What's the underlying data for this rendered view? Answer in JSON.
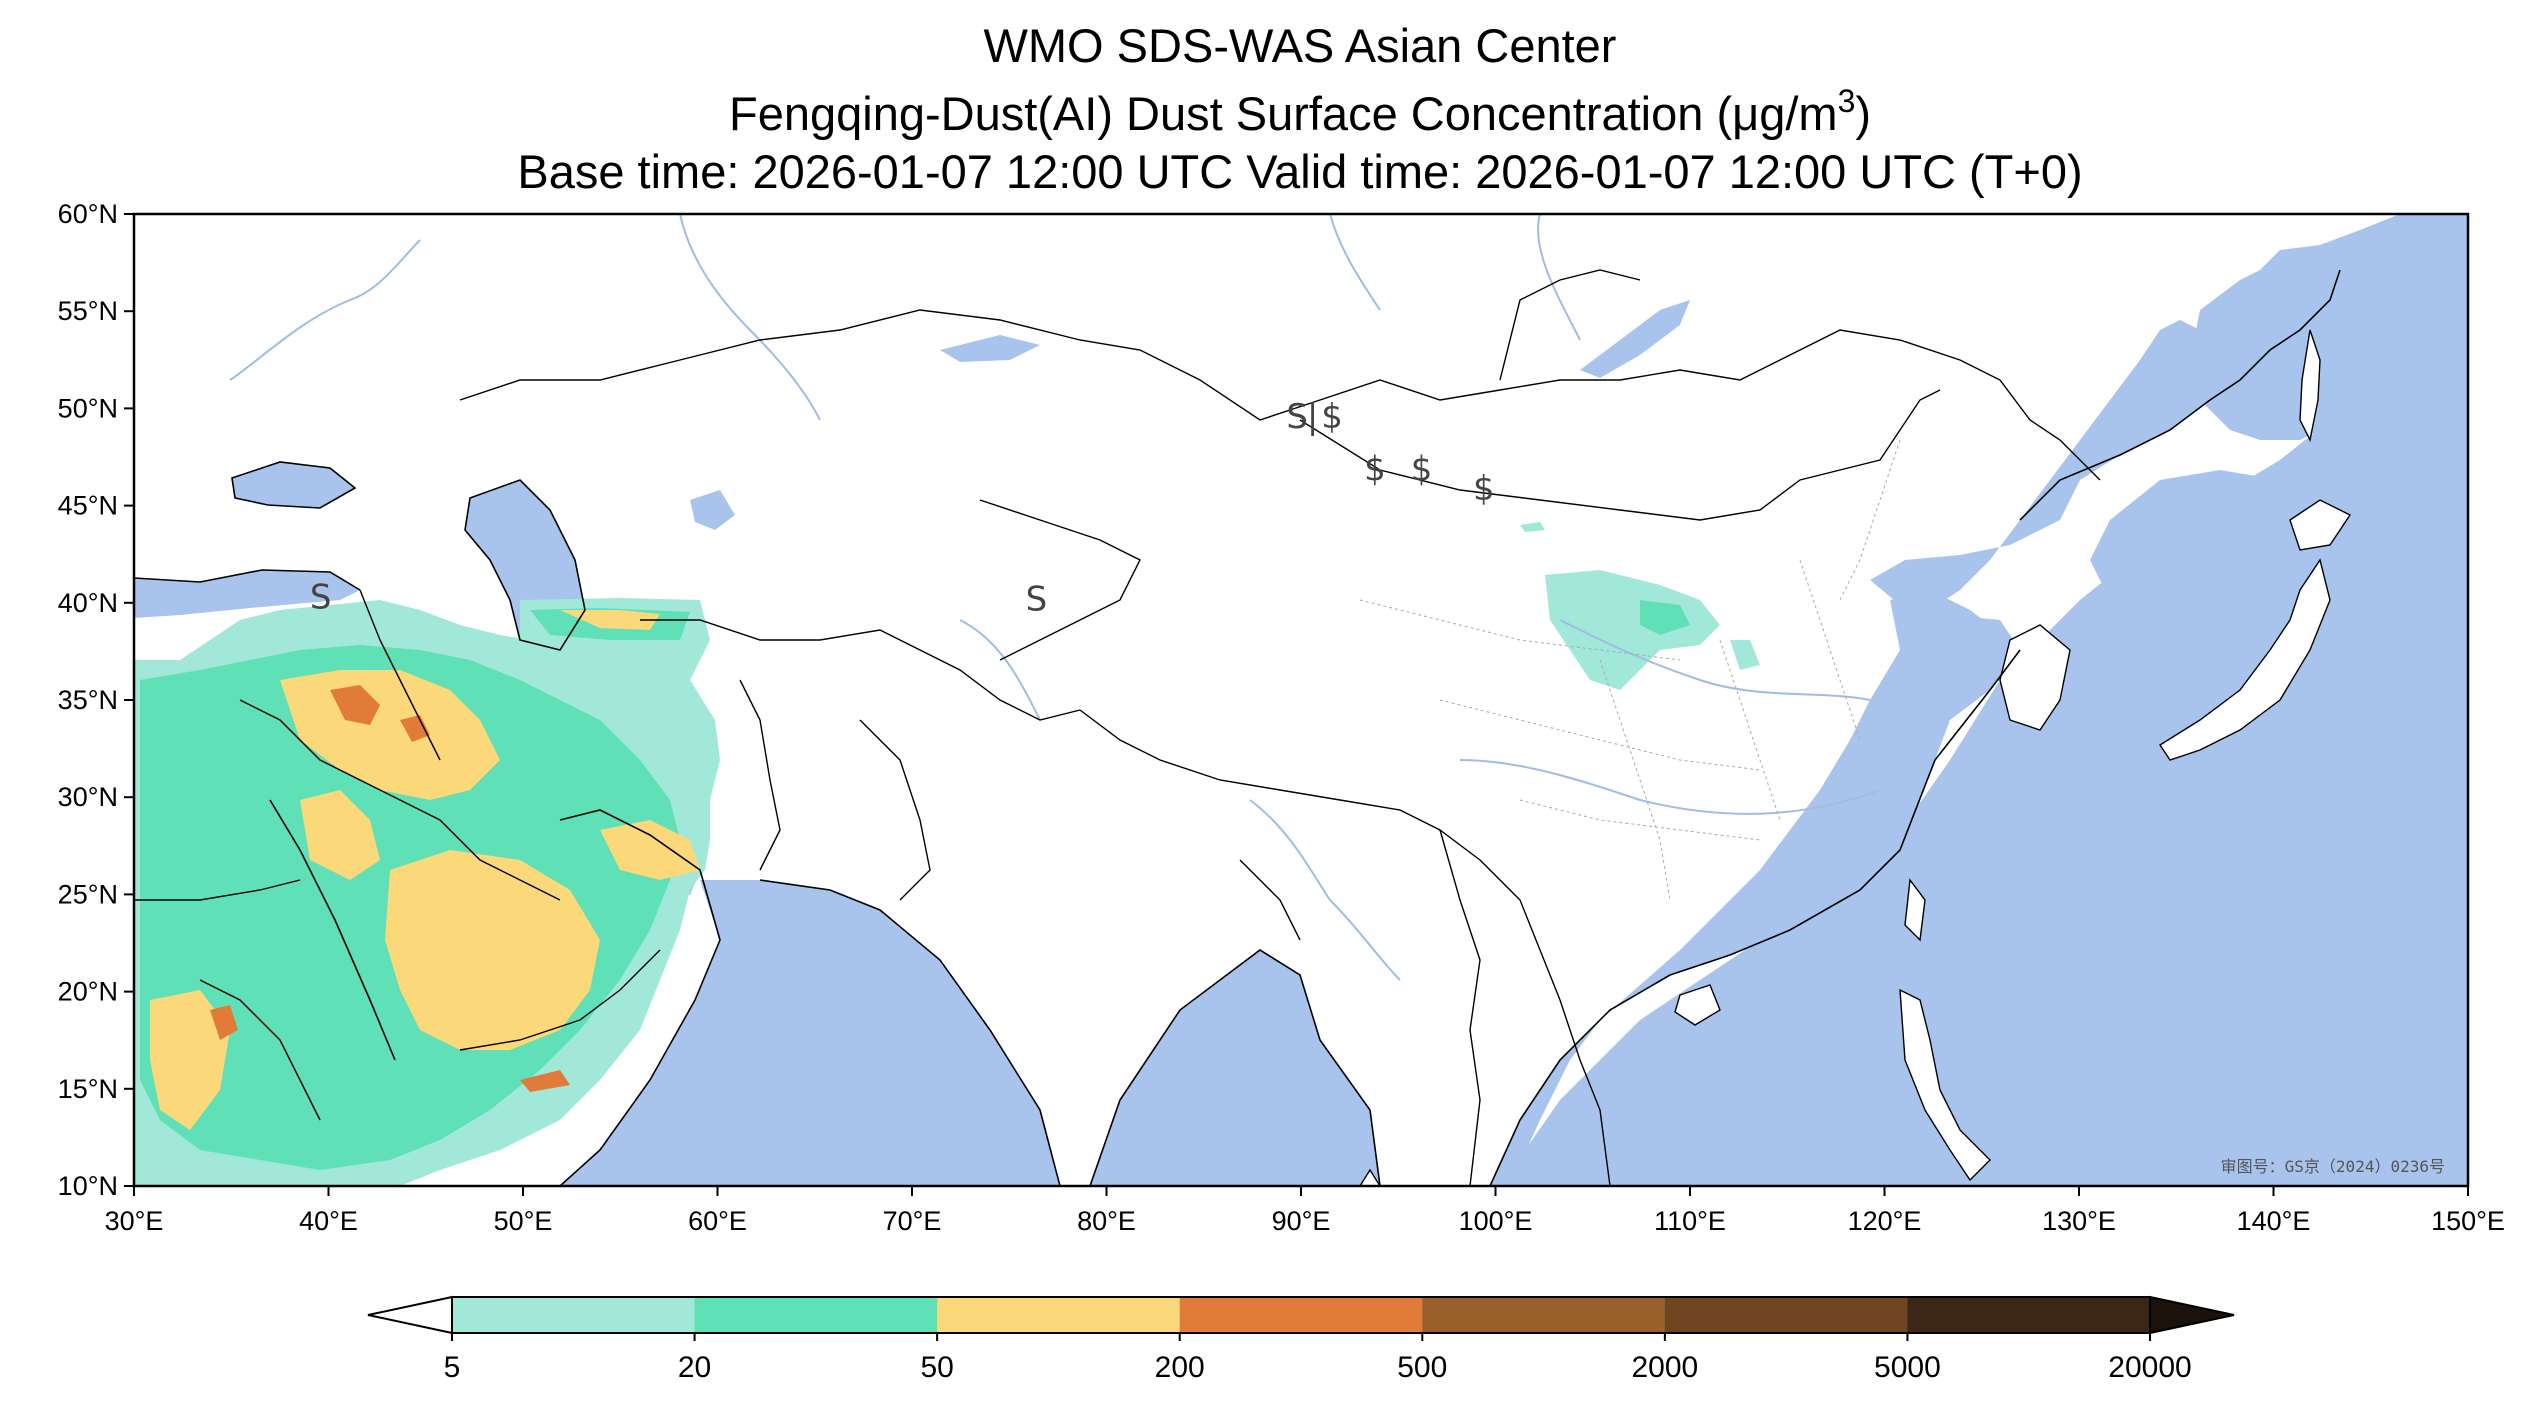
{
  "titles": {
    "line1": "WMO SDS-WAS Asian Center",
    "line2_prefix": "Fengqing-Dust(AI) Dust Surface Concentration (",
    "line2_unit_mu": "μ",
    "line2_unit_base": "g/m",
    "line2_unit_exp": "3",
    "line2_suffix": ")",
    "line3": "Base time: 2026-01-07 12:00 UTC Valid time: 2026-01-07 12:00 UTC (T+0)"
  },
  "map": {
    "lon_range": [
      30,
      150
    ],
    "lat_range": [
      10,
      60
    ],
    "lon_ticks": [
      "30°E",
      "40°E",
      "50°E",
      "60°E",
      "70°E",
      "80°E",
      "90°E",
      "100°E",
      "110°E",
      "120°E",
      "130°E",
      "140°E",
      "150°E"
    ],
    "lat_ticks": [
      "10°N",
      "15°N",
      "20°N",
      "25°N",
      "30°N",
      "35°N",
      "40°N",
      "45°N",
      "50°N",
      "55°N",
      "60°N"
    ],
    "ocean_color": "#a9c4ec",
    "land_color": "#ffffff",
    "approval_text": "审图号：GS京（2024）0236号",
    "storm_markers": [
      {
        "symbol": "S",
        "lon": 39.6,
        "lat": 39.7
      },
      {
        "symbol": "S",
        "lon": 76.4,
        "lat": 39.6
      },
      {
        "symbol": "S",
        "lon": 89.8,
        "lat": 49.0
      },
      {
        "symbol": "|",
        "lon": 90.6,
        "lat": 49.0
      },
      {
        "symbol": "$",
        "lon": 91.6,
        "lat": 49.0
      },
      {
        "symbol": "$",
        "lon": 93.8,
        "lat": 46.3
      },
      {
        "symbol": "$",
        "lon": 96.2,
        "lat": 46.3
      },
      {
        "symbol": "$",
        "lon": 99.4,
        "lat": 45.3
      }
    ]
  },
  "colorbar": {
    "levels": [
      "5",
      "20",
      "50",
      "200",
      "500",
      "2000",
      "5000",
      "20000"
    ],
    "colors": [
      "#a1e8d9",
      "#5fe0b6",
      "#fbd879",
      "#e07b39",
      "#9a5f2b",
      "#6f4522",
      "#3c2716"
    ],
    "under_color": "#ffffff",
    "over_color": "#1a120b"
  }
}
